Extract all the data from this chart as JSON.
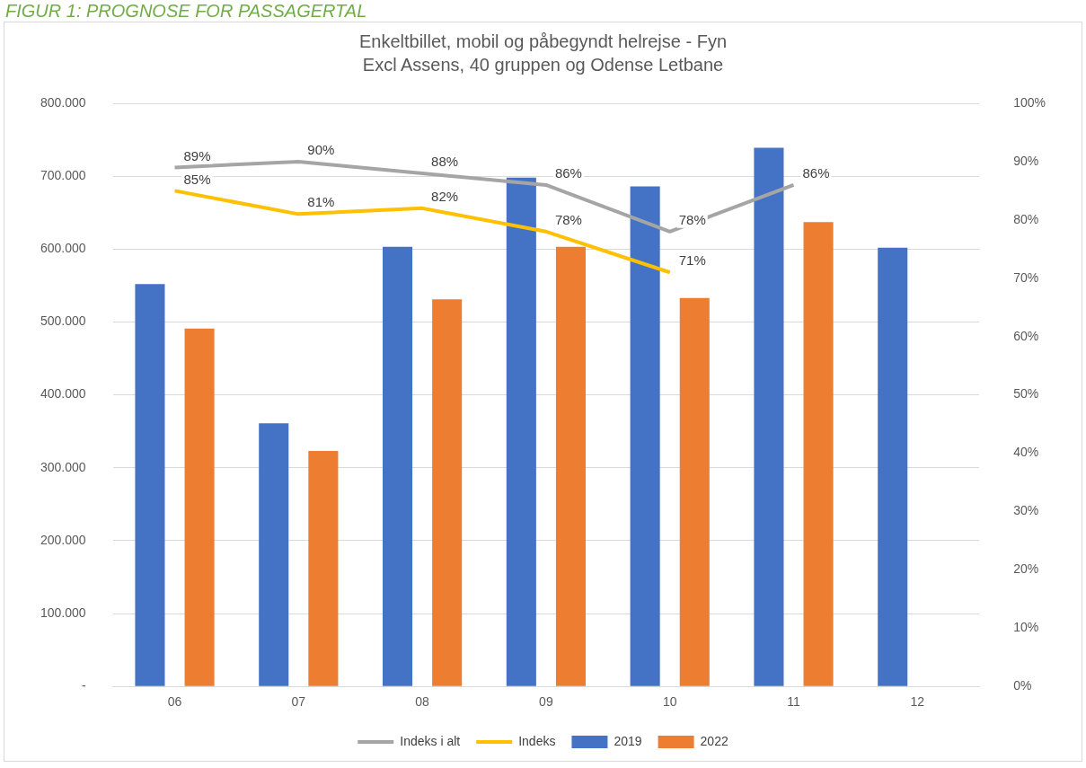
{
  "chart_data": {
    "type": "bar",
    "title": "Enkeltbillet, mobil og påbegyndt helrejse - Fyn",
    "subtitle": "Excl Assens, 40 gruppen og Odense Letbane",
    "annotations": [
      "FIGUR 1: PROGNOSE FOR PASSAGERTAL"
    ],
    "categories": [
      "06",
      "07",
      "08",
      "09",
      "10",
      "11",
      "12"
    ],
    "series": [
      {
        "name": "2019",
        "color": "#4472c4",
        "values": [
          552000,
          361000,
          603000,
          698000,
          686000,
          739000,
          602000
        ]
      },
      {
        "name": "2022",
        "color": "#ed7d31",
        "values": [
          491000,
          323000,
          531000,
          603000,
          533000,
          637000,
          null
        ]
      },
      {
        "name": "Indeks i alt",
        "type": "line",
        "axis": "y2",
        "color": "#a5a5a5",
        "values": [
          89,
          90,
          88,
          86,
          78,
          86,
          null
        ],
        "value_labels": [
          "89%",
          "90%",
          "88%",
          "86%",
          "78%",
          "86%",
          null
        ]
      },
      {
        "name": "Indeks",
        "type": "line",
        "axis": "y2",
        "color": "#ffc000",
        "values": [
          85,
          81,
          82,
          78,
          71,
          null,
          null
        ],
        "value_labels": [
          "85%",
          "81%",
          "82%",
          "78%",
          "71%",
          null,
          null
        ]
      }
    ],
    "ylim": [
      0,
      800000
    ],
    "yticks": [
      {
        "value": 0,
        "label": "-"
      },
      {
        "value": 100000,
        "label": "100.000"
      },
      {
        "value": 200000,
        "label": "200.000"
      },
      {
        "value": 300000,
        "label": "300.000"
      },
      {
        "value": 400000,
        "label": "400.000"
      },
      {
        "value": 500000,
        "label": "500.000"
      },
      {
        "value": 600000,
        "label": "600.000"
      },
      {
        "value": 700000,
        "label": "700.000"
      },
      {
        "value": 800000,
        "label": "800.000"
      }
    ],
    "y2lim": [
      0,
      100
    ],
    "y2ticks": [
      {
        "value": 0,
        "label": "0%"
      },
      {
        "value": 10,
        "label": "10%"
      },
      {
        "value": 20,
        "label": "20%"
      },
      {
        "value": 30,
        "label": "30%"
      },
      {
        "value": 40,
        "label": "40%"
      },
      {
        "value": 50,
        "label": "50%"
      },
      {
        "value": 60,
        "label": "60%"
      },
      {
        "value": 70,
        "label": "70%"
      },
      {
        "value": 80,
        "label": "80%"
      },
      {
        "value": 90,
        "label": "90%"
      },
      {
        "value": 100,
        "label": "100%"
      }
    ],
    "grid": "y",
    "legend": "bottom",
    "marker": "none",
    "line_style": "solid"
  }
}
